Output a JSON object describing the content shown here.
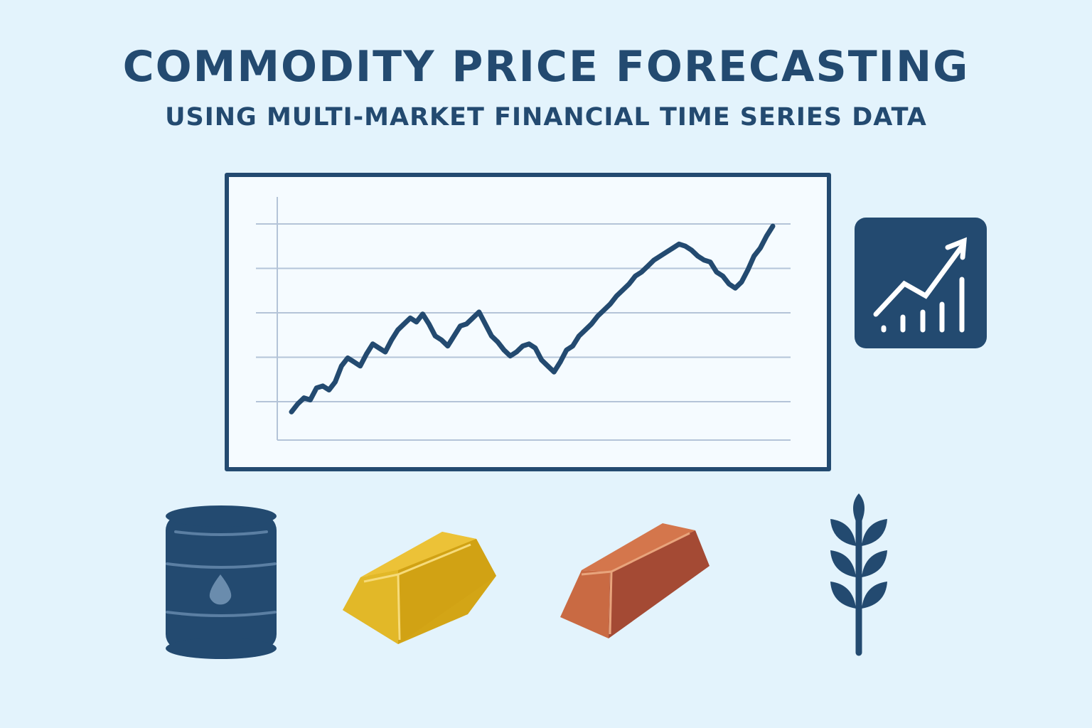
{
  "header": {
    "title": "COMMODITY PRICE FORECASTING",
    "subtitle": "USING MULTI-MARKET FINANCIAL TIME SERIES DATA"
  },
  "colors": {
    "background": "#e3f3fc",
    "navy": "#234a70",
    "gridline": "#b4c4d8",
    "gold": "#e7b92a",
    "copper": "#c0623f",
    "oil_drop": "#6a8cad"
  },
  "icons": [
    "growth-chart-icon",
    "oil-barrel-icon",
    "gold-bar-icon",
    "copper-bar-icon",
    "wheat-icon"
  ],
  "chart_data": {
    "type": "line",
    "title": "",
    "xlabel": "",
    "ylabel": "",
    "grid": true,
    "gridline_count": 5,
    "ylim": [
      0,
      100
    ],
    "xlim": [
      0,
      77
    ],
    "series": [
      {
        "values": [
          2,
          6,
          9,
          8,
          14,
          15,
          13,
          17,
          25,
          29,
          27,
          25,
          31,
          36,
          34,
          32,
          38,
          43,
          46,
          49,
          47,
          51,
          46,
          40,
          38,
          35,
          40,
          45,
          46,
          49,
          52,
          46,
          40,
          37,
          33,
          30,
          32,
          35,
          36,
          34,
          28,
          25,
          22,
          27,
          33,
          35,
          40,
          43,
          46,
          50,
          53,
          56,
          60,
          63,
          66,
          70,
          72,
          75,
          78,
          80,
          82,
          84,
          86,
          85,
          83,
          80,
          78,
          77,
          72,
          70,
          66,
          64,
          67,
          73,
          80,
          84,
          90,
          95
        ]
      }
    ]
  }
}
